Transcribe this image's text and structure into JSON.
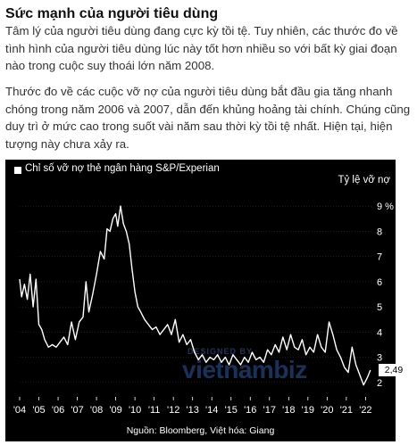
{
  "article": {
    "heading": "Sức mạnh của người tiêu dùng",
    "paragraph_1": "Tâm lý của người tiêu dùng đang cực kỳ tồi tệ. Tuy nhiên, các thước đo về tình hình của người tiêu dùng lúc này tốt hơn nhiều so với bất kỳ giai đoạn nào trong cuộc suy thoái lớn năm 2008.",
    "paragraph_2": "Thước đo về các cuộc vỡ nợ của người tiêu dùng bắt đầu gia tăng nhanh chóng trong năm 2006 và 2007, dẫn đến khủng hoảng tài chính. Chúng cũng duy trì ở mức cao trong suốt vài năm sau thời kỳ tồi tệ nhất. Hiện tại, hiện tượng này chưa xảy ra."
  },
  "watermark": {
    "top": "DESIGNED BY",
    "main": "vietnambiz"
  },
  "colors": {
    "panel_bg": "#000000",
    "line": "#ffffff",
    "grid": "#3a3a3a",
    "text": "#ffffff"
  },
  "chart_data": {
    "type": "line",
    "legend": "Chỉ số vỡ nợ thẻ ngân hàng S&P/Experian",
    "ylabel": "Tỷ lệ vỡ nợ",
    "source": "Nguồn: Bloomberg, Việt hóa: Giang",
    "y_axis_side": "right",
    "ylim": [
      1.5,
      9.5
    ],
    "y_ticks": [
      2,
      3,
      4,
      5,
      6,
      7,
      8,
      9
    ],
    "y_tick_labels": [
      "2",
      "3",
      "4",
      "5",
      "6",
      "7",
      "8",
      "9 %"
    ],
    "xlim": [
      2004,
      2022.4
    ],
    "x_ticks": [
      2004,
      2005,
      2006,
      2007,
      2008,
      2009,
      2010,
      2011,
      2012,
      2013,
      2014,
      2015,
      2016,
      2017,
      2018,
      2019,
      2020,
      2021,
      2022
    ],
    "x_tick_labels": [
      "'04",
      "'05",
      "'06",
      "'07",
      "'08",
      "'09",
      "'10",
      "'11",
      "'12",
      "'13",
      "'14",
      "'15",
      "'16",
      "'17",
      "'18",
      "'19",
      "'20",
      "'21",
      "'22"
    ],
    "last_value_label": "2,49",
    "grid": true,
    "series": [
      {
        "x": [
          2004.0,
          2004.1,
          2004.25,
          2004.4,
          2004.55,
          2004.7,
          2004.85,
          2005.0,
          2005.15,
          2005.3,
          2005.5,
          2005.7,
          2005.9,
          2006.1,
          2006.3,
          2006.5,
          2006.7,
          2006.9,
          2007.1,
          2007.3,
          2007.45,
          2007.6,
          2007.8,
          2008.0,
          2008.2,
          2008.4,
          2008.55,
          2008.7,
          2008.85,
          2009.0,
          2009.1,
          2009.25,
          2009.4,
          2009.55,
          2009.7,
          2009.85,
          2010.0,
          2010.15,
          2010.3,
          2010.5,
          2010.7,
          2010.9,
          2011.1,
          2011.3,
          2011.5,
          2011.7,
          2011.9,
          2012.1,
          2012.3,
          2012.5,
          2012.7,
          2012.9,
          2013.1,
          2013.3,
          2013.5,
          2013.7,
          2013.9,
          2014.1,
          2014.3,
          2014.5,
          2014.7,
          2014.9,
          2015.1,
          2015.3,
          2015.5,
          2015.7,
          2015.9,
          2016.1,
          2016.3,
          2016.5,
          2016.7,
          2016.9,
          2017.1,
          2017.3,
          2017.5,
          2017.7,
          2017.9,
          2018.1,
          2018.3,
          2018.5,
          2018.7,
          2018.9,
          2019.1,
          2019.3,
          2019.5,
          2019.7,
          2019.9,
          2020.1,
          2020.3,
          2020.5,
          2020.7,
          2020.9,
          2021.1,
          2021.3,
          2021.5,
          2021.7,
          2021.9,
          2022.1,
          2022.25
        ],
        "values": [
          6.1,
          5.4,
          5.9,
          5.3,
          6.3,
          5.0,
          6.1,
          4.3,
          4.1,
          3.7,
          3.4,
          3.5,
          3.4,
          3.6,
          3.8,
          3.5,
          4.4,
          3.7,
          4.4,
          4.6,
          6.0,
          4.8,
          5.5,
          6.3,
          7.2,
          6.9,
          8.1,
          8.0,
          8.5,
          8.7,
          8.2,
          9.0,
          8.3,
          8.0,
          7.5,
          6.5,
          5.6,
          5.0,
          4.8,
          4.5,
          4.3,
          4.1,
          4.2,
          3.9,
          4.1,
          4.3,
          3.9,
          4.5,
          3.6,
          3.9,
          3.5,
          3.7,
          3.2,
          2.9,
          3.1,
          2.8,
          3.0,
          2.9,
          3.1,
          2.8,
          3.0,
          2.7,
          3.1,
          2.9,
          2.7,
          3.0,
          2.8,
          3.2,
          2.9,
          3.0,
          2.8,
          3.3,
          3.1,
          3.5,
          3.2,
          3.8,
          3.3,
          3.9,
          3.4,
          3.3,
          3.7,
          3.1,
          3.4,
          3.2,
          3.9,
          3.4,
          3.2,
          4.4,
          3.9,
          3.3,
          3.0,
          2.6,
          2.4,
          3.4,
          2.7,
          2.3,
          1.9,
          2.2,
          2.49
        ]
      }
    ]
  }
}
